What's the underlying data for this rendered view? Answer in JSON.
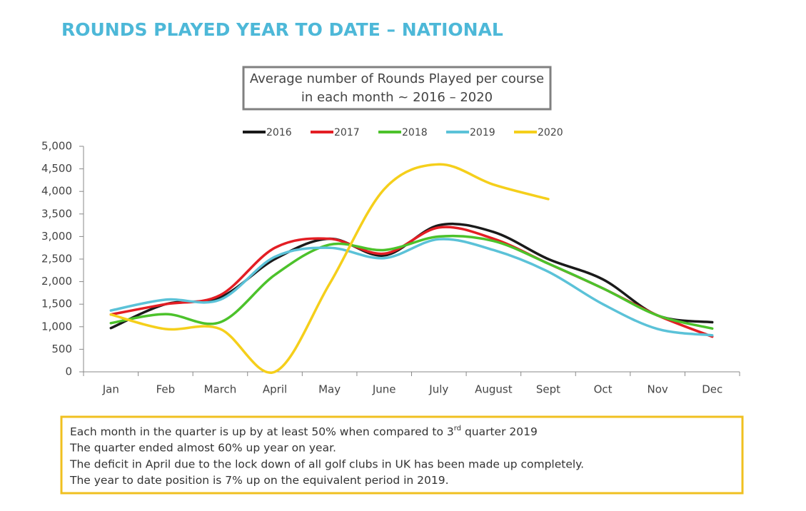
{
  "heading": "ROUNDS PLAYED YEAR TO DATE – NATIONAL",
  "chart_data": {
    "type": "line",
    "title": [
      "Average number of Rounds Played per course",
      "in each month ~ 2016 – 2020"
    ],
    "categories": [
      "Jan",
      "Feb",
      "March",
      "April",
      "May",
      "June",
      "July",
      "August",
      "Sept",
      "Oct",
      "Nov",
      "Dec"
    ],
    "series": [
      {
        "name": "2016",
        "color": "#1a1a1a",
        "values": [
          970,
          1500,
          1650,
          2500,
          2950,
          2580,
          3250,
          3100,
          2500,
          2050,
          1250,
          1100
        ]
      },
      {
        "name": "2017",
        "color": "#e31e24",
        "values": [
          1270,
          1500,
          1700,
          2750,
          2950,
          2620,
          3200,
          2950,
          2400,
          1850,
          1250,
          780
        ]
      },
      {
        "name": "2018",
        "color": "#4cc22b",
        "values": [
          1080,
          1280,
          1100,
          2150,
          2820,
          2700,
          3000,
          2900,
          2400,
          1850,
          1250,
          960
        ]
      },
      {
        "name": "2019",
        "color": "#5bc2d8",
        "values": [
          1360,
          1600,
          1600,
          2550,
          2750,
          2520,
          2940,
          2700,
          2220,
          1500,
          950,
          810
        ]
      },
      {
        "name": "2020",
        "color": "#f5cf1b",
        "values": [
          1270,
          950,
          950,
          0,
          1950,
          4050,
          4600,
          4150,
          3830,
          null,
          null,
          null
        ]
      }
    ],
    "ylim": [
      0,
      5000
    ],
    "yticks": [
      0,
      500,
      {
        "value": 1000,
        "label": "1,000"
      },
      {
        "value": 1500,
        "label": "1,500"
      },
      {
        "value": 2000,
        "label": "2,000"
      },
      {
        "value": 2500,
        "label": "2,500"
      },
      {
        "value": 3000,
        "label": "3,000"
      },
      {
        "value": 3500,
        "label": "3,500"
      },
      {
        "value": 4000,
        "label": "4,000"
      },
      {
        "value": 4500,
        "label": "4,500"
      },
      {
        "value": 5000,
        "label": "5,000"
      }
    ],
    "legend": "top",
    "grid": false
  },
  "notes": [
    [
      "Each month in the quarter is up by at least 50% when compared to 3",
      "rd",
      " quarter 2019"
    ],
    [
      "The quarter ended almost 60% up year on year."
    ],
    [
      "The deficit in April due to the lock down of all golf clubs in UK has been made up completely."
    ],
    [
      "The year to date position is 7% up on the equivalent period in 2019."
    ]
  ]
}
